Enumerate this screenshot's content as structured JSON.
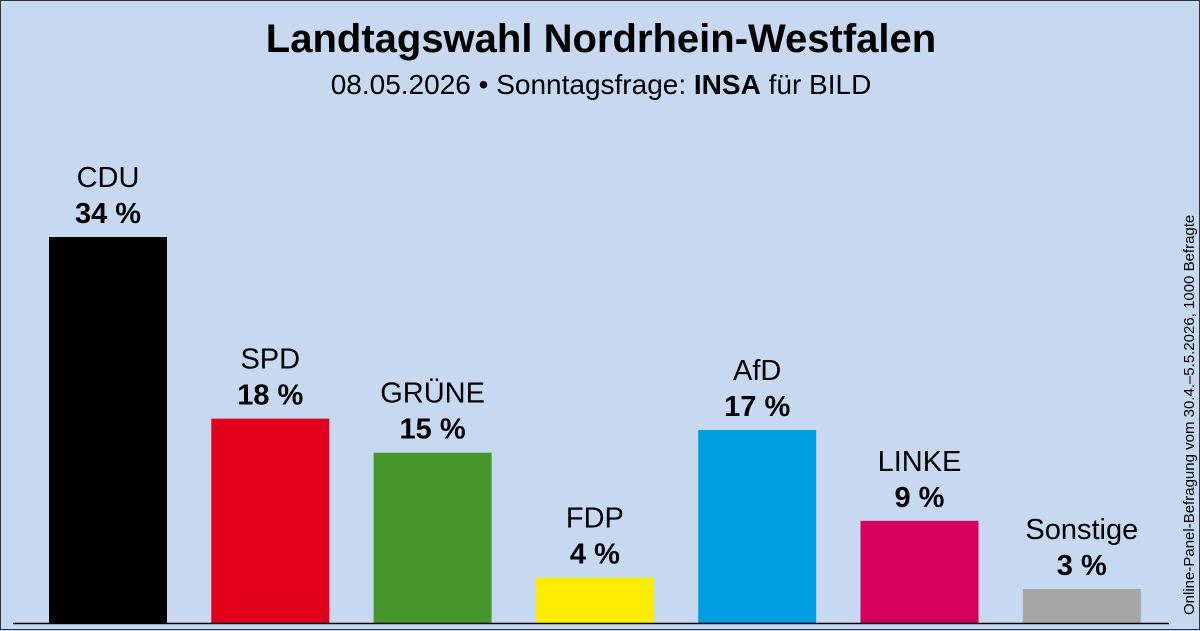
{
  "header": {
    "title": "Landtagswahl Nordrhein-Westfalen",
    "subtitle_prefix": "08.05.2026 • Sonntagsfrage: ",
    "institute": "INSA",
    "subtitle_suffix": " für BILD"
  },
  "footnote": "Online-Panel-Befragung vom 30.4.–5.5.2026, 1000 Befragte",
  "chart_data": {
    "type": "bar",
    "title": "Landtagswahl Nordrhein-Westfalen",
    "subtitle": "08.05.2026 • Sonntagsfrage: INSA für BILD",
    "categories": [
      "CDU",
      "SPD",
      "GRÜNE",
      "FDP",
      "AfD",
      "LINKE",
      "Sonstige"
    ],
    "values": [
      34,
      18,
      15,
      4,
      17,
      9,
      3
    ],
    "value_labels": [
      "34 %",
      "18 %",
      "15 %",
      "4 %",
      "17 %",
      "9 %",
      "3 %"
    ],
    "colors": [
      "#000000",
      "#e3001b",
      "#46962b",
      "#ffed00",
      "#009ee0",
      "#d6005f",
      "#a5a5a5"
    ],
    "background": "#c6d9f0",
    "xlabel": "",
    "ylabel": "",
    "ylim": [
      0,
      34
    ],
    "grid": false,
    "legend": "none"
  }
}
